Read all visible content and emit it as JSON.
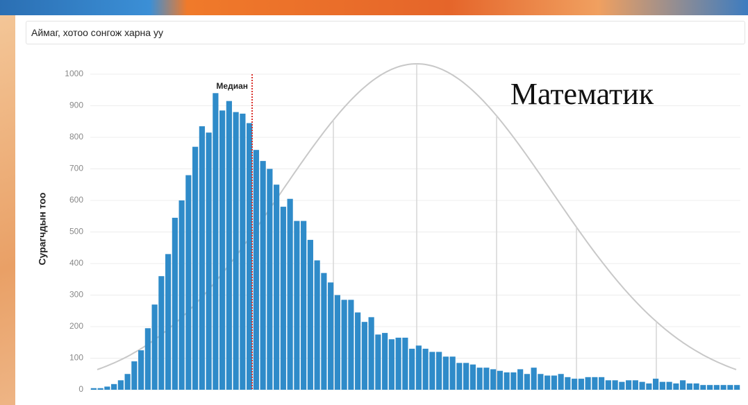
{
  "filter": {
    "placeholder": "Аймаг, хотоо сонгож харна уу"
  },
  "chart_data": {
    "type": "bar",
    "title": "Математик",
    "y_label": "Сурагчдын тоо",
    "annotation": "Медиан",
    "color": "#2f8bc9",
    "grid": true,
    "ylim": [
      0,
      1000
    ],
    "yticks": [
      0,
      100,
      200,
      300,
      400,
      500,
      600,
      700,
      800,
      900,
      1000
    ],
    "categories": [
      null,
      null,
      null,
      null,
      null,
      null,
      null,
      null,
      null,
      null,
      null,
      null,
      null,
      null,
      null,
      null,
      null,
      null,
      null,
      null,
      null,
      null,
      null,
      null,
      null,
      null,
      null,
      null,
      null,
      null,
      null,
      null,
      null,
      null,
      null,
      null,
      null,
      null,
      null,
      null,
      null,
      null,
      null,
      null,
      null,
      null,
      null,
      null,
      null,
      null,
      null,
      null,
      null,
      null,
      null,
      null,
      null,
      null,
      null,
      null,
      null,
      null,
      null,
      null,
      null,
      null,
      null,
      null,
      null,
      null,
      null,
      null,
      null,
      null,
      null,
      null,
      null,
      null,
      null,
      null,
      null,
      null,
      null,
      null,
      null,
      null,
      null,
      null,
      null,
      null,
      null,
      null,
      null,
      null,
      null,
      null
    ],
    "values": [
      5,
      5,
      10,
      18,
      30,
      50,
      90,
      125,
      195,
      270,
      360,
      430,
      545,
      600,
      680,
      770,
      835,
      815,
      940,
      885,
      915,
      880,
      875,
      845,
      760,
      725,
      700,
      650,
      580,
      605,
      535,
      535,
      475,
      410,
      370,
      340,
      300,
      285,
      285,
      245,
      215,
      230,
      175,
      180,
      160,
      165,
      165,
      130,
      140,
      130,
      120,
      120,
      105,
      105,
      85,
      85,
      80,
      70,
      70,
      65,
      60,
      55,
      55,
      65,
      50,
      70,
      50,
      45,
      45,
      50,
      40,
      35,
      35,
      40,
      40,
      40,
      30,
      30,
      25,
      30,
      30,
      25,
      20,
      35,
      25,
      25,
      20,
      30,
      20,
      20,
      15,
      15,
      15,
      15,
      15,
      15
    ]
  }
}
